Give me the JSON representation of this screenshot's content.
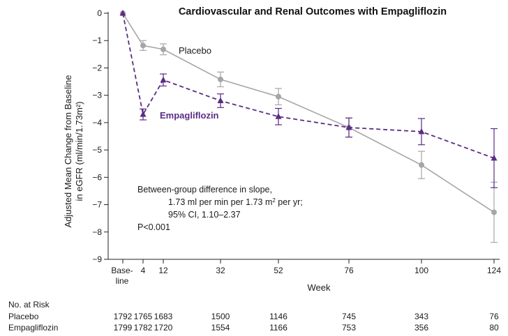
{
  "chart_data": {
    "type": "line",
    "title": "Cardiovascular and Renal Outcomes with Empagliflozin",
    "ylabel_line1": "Adjusted Mean Change from Baseline",
    "ylabel_line2": "in eGFR (ml/min/1.73m²)",
    "xlabel": "Week",
    "ylim": [
      -9,
      0
    ],
    "yticks": [
      0,
      -1,
      -2,
      -3,
      -4,
      -5,
      -6,
      -7,
      -8,
      -9
    ],
    "ytick_labels": [
      "0",
      "−1",
      "−2",
      "−3",
      "−4",
      "−5",
      "−6",
      "−7",
      "−8",
      "−9"
    ],
    "xticks": [
      0,
      4,
      12,
      32,
      52,
      76,
      100,
      124
    ],
    "xtick_labels": [
      "Base-",
      "4",
      "12",
      "32",
      "52",
      "76",
      "100",
      "124"
    ],
    "xtick_baseline_line2": "line",
    "colors": {
      "placebo": "#a6a6a6",
      "empagliflozin": "#5b2c83"
    },
    "series": [
      {
        "name": "Placebo",
        "x": [
          0,
          4,
          12,
          32,
          52,
          76,
          100,
          124
        ],
        "y": [
          0,
          -1.18,
          -1.32,
          -2.42,
          -3.05,
          -4.18,
          -5.55,
          -7.28
        ],
        "err": [
          0,
          0.18,
          0.2,
          0.27,
          0.3,
          0.35,
          0.5,
          1.1
        ]
      },
      {
        "name": "Empagliflozin",
        "x": [
          0,
          4,
          12,
          32,
          52,
          76,
          100,
          124
        ],
        "y": [
          0,
          -3.7,
          -2.44,
          -3.2,
          -3.78,
          -4.18,
          -4.33,
          -5.3
        ],
        "err": [
          0,
          0.2,
          0.22,
          0.25,
          0.3,
          0.35,
          0.48,
          1.08
        ]
      }
    ],
    "annotation": {
      "line1": "Between-group difference in slope,",
      "line2a": "1.73 ml per min per 1.73 m",
      "line2sup": "2",
      "line2b": " per yr;",
      "line3": "95% CI, 1.10–2.37",
      "line4": "P<0.001"
    },
    "risk_table": {
      "header": "No. at Risk",
      "rows": [
        {
          "label": "Placebo",
          "values": [
            "1792",
            "1765",
            "1683",
            "1500",
            "1146",
            "745",
            "343",
            "76"
          ]
        },
        {
          "label": "Empagliflozin",
          "values": [
            "1799",
            "1782",
            "1720",
            "1554",
            "1166",
            "753",
            "356",
            "80"
          ]
        }
      ]
    }
  }
}
